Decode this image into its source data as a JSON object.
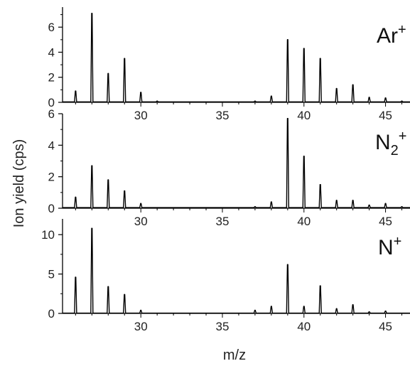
{
  "figure": {
    "xlabel": "m/z",
    "ylabel": "Ion yield (cps)"
  },
  "chart_data": [
    {
      "type": "line",
      "ion": {
        "base": "Ar",
        "sub": "",
        "sup": "+"
      },
      "xlim": [
        25.2,
        46.5
      ],
      "ylim": [
        0,
        7.6
      ],
      "xticks": [
        30,
        35,
        40,
        45
      ],
      "yticks": [
        0,
        2,
        4,
        6
      ],
      "grid": false,
      "peaks": [
        {
          "mz": 26,
          "y": 0.9
        },
        {
          "mz": 27,
          "y": 7.1
        },
        {
          "mz": 28,
          "y": 2.3
        },
        {
          "mz": 29,
          "y": 3.5
        },
        {
          "mz": 30,
          "y": 0.8
        },
        {
          "mz": 31,
          "y": 0.1
        },
        {
          "mz": 37,
          "y": 0.1
        },
        {
          "mz": 38,
          "y": 0.5
        },
        {
          "mz": 39,
          "y": 5.0
        },
        {
          "mz": 40,
          "y": 4.3
        },
        {
          "mz": 41,
          "y": 3.5
        },
        {
          "mz": 42,
          "y": 1.1
        },
        {
          "mz": 43,
          "y": 1.4
        },
        {
          "mz": 44,
          "y": 0.4
        },
        {
          "mz": 45,
          "y": 0.35
        },
        {
          "mz": 46,
          "y": 0.1
        }
      ]
    },
    {
      "type": "line",
      "ion": {
        "base": "N",
        "sub": "2",
        "sup": "+"
      },
      "xlim": [
        25.2,
        46.5
      ],
      "ylim": [
        0,
        6.0
      ],
      "xticks": [
        30,
        35,
        40,
        45
      ],
      "yticks": [
        0,
        2,
        4,
        6
      ],
      "grid": false,
      "peaks": [
        {
          "mz": 26,
          "y": 0.7
        },
        {
          "mz": 27,
          "y": 2.7
        },
        {
          "mz": 28,
          "y": 1.8
        },
        {
          "mz": 29,
          "y": 1.1
        },
        {
          "mz": 30,
          "y": 0.3
        },
        {
          "mz": 37,
          "y": 0.1
        },
        {
          "mz": 38,
          "y": 0.4
        },
        {
          "mz": 39,
          "y": 5.7
        },
        {
          "mz": 40,
          "y": 3.3
        },
        {
          "mz": 41,
          "y": 1.5
        },
        {
          "mz": 42,
          "y": 0.5
        },
        {
          "mz": 43,
          "y": 0.5
        },
        {
          "mz": 44,
          "y": 0.2
        },
        {
          "mz": 45,
          "y": 0.3
        },
        {
          "mz": 46,
          "y": 0.1
        }
      ]
    },
    {
      "type": "line",
      "ion": {
        "base": "N",
        "sub": "",
        "sup": "+"
      },
      "xlim": [
        25.2,
        46.5
      ],
      "ylim": [
        0,
        12.0
      ],
      "xticks": [
        30,
        35,
        40,
        45
      ],
      "yticks": [
        0,
        5,
        10
      ],
      "grid": false,
      "peaks": [
        {
          "mz": 26,
          "y": 4.6
        },
        {
          "mz": 27,
          "y": 10.8
        },
        {
          "mz": 28,
          "y": 3.4
        },
        {
          "mz": 29,
          "y": 2.4
        },
        {
          "mz": 30,
          "y": 0.4
        },
        {
          "mz": 37,
          "y": 0.4
        },
        {
          "mz": 38,
          "y": 0.9
        },
        {
          "mz": 39,
          "y": 6.2
        },
        {
          "mz": 40,
          "y": 0.9
        },
        {
          "mz": 41,
          "y": 3.5
        },
        {
          "mz": 42,
          "y": 0.6
        },
        {
          "mz": 43,
          "y": 1.1
        },
        {
          "mz": 44,
          "y": 0.2
        },
        {
          "mz": 45,
          "y": 0.3
        }
      ]
    }
  ]
}
